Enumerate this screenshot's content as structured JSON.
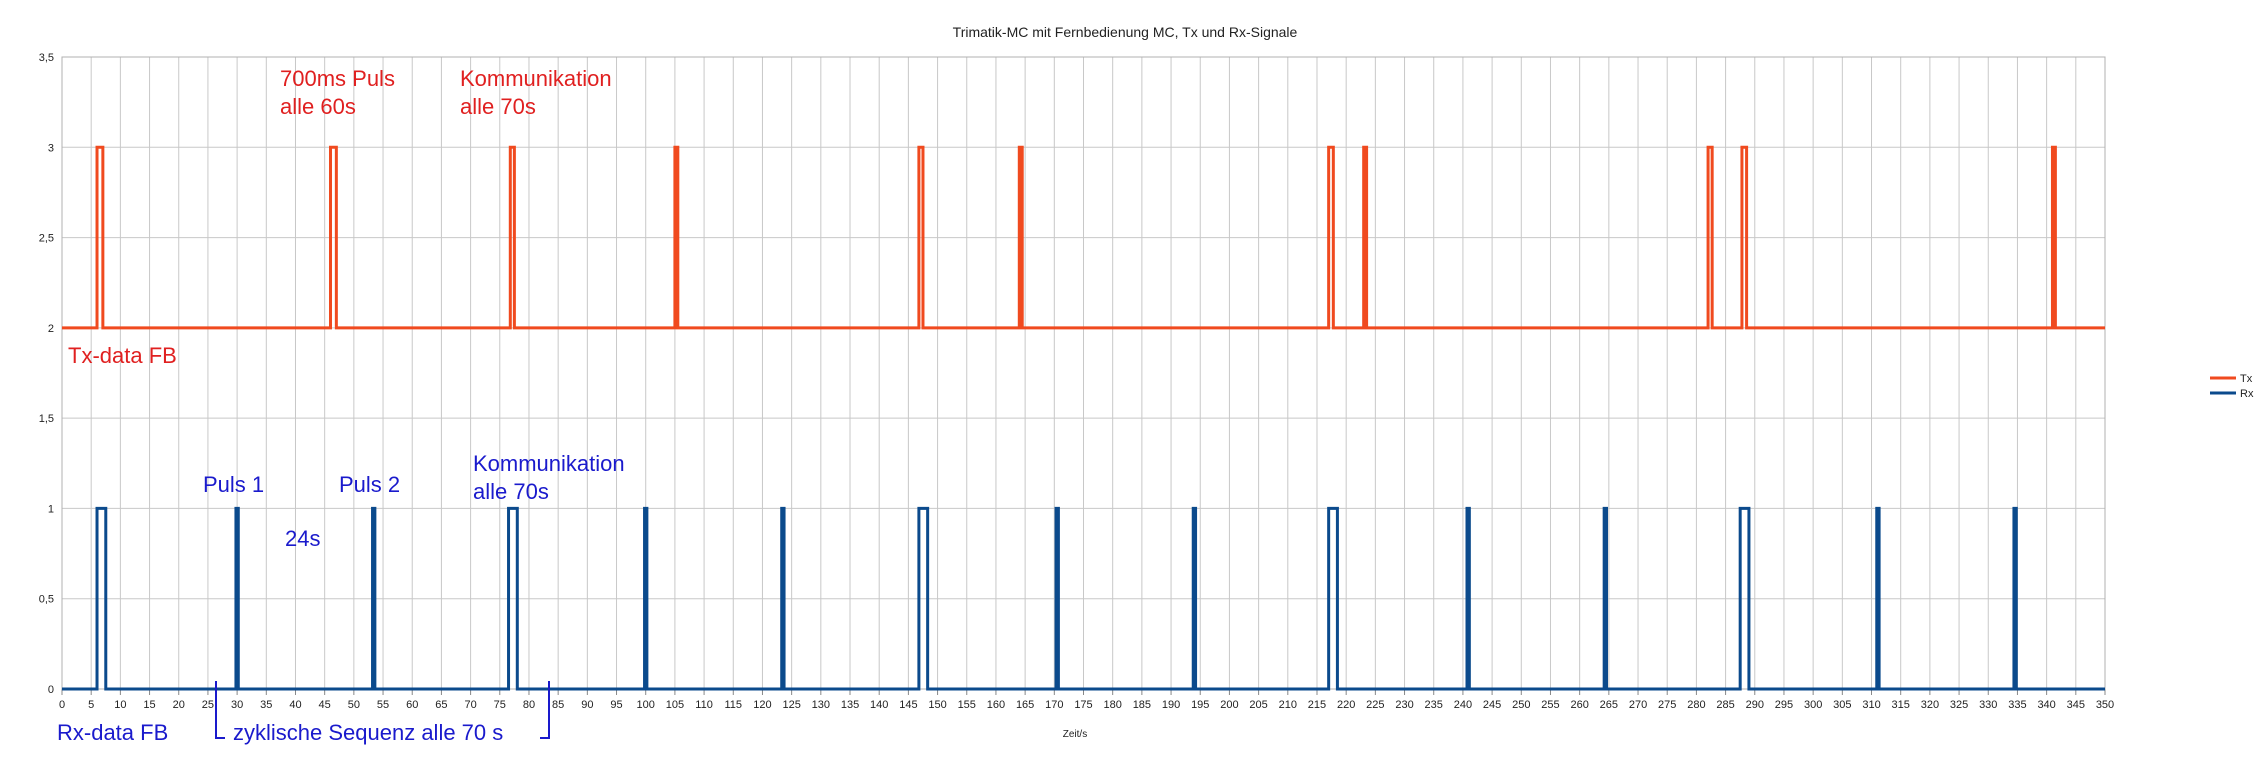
{
  "chart_data": {
    "type": "line",
    "title": "Trimatik-MC mit Fernbedienung MC, Tx und Rx-Signale",
    "xlabel": "Zeit/s",
    "ylabel": "",
    "xlim": [
      0,
      350
    ],
    "ylim": [
      0,
      3.5
    ],
    "x_step": 5,
    "y_ticks": [
      "0",
      "0,5",
      "1",
      "1,5",
      "2",
      "2,5",
      "3",
      "3,5"
    ],
    "grid": true,
    "legend_position": "right",
    "series": [
      {
        "name": "Tx",
        "color": "#f04a1f",
        "baseline": 2,
        "high": 3,
        "pulses": [
          [
            6,
            7
          ],
          [
            46,
            47
          ],
          [
            76.8,
            77.5
          ],
          [
            105,
            105.5
          ],
          [
            146.8,
            147.5
          ],
          [
            164,
            164.5
          ],
          [
            217,
            217.8
          ],
          [
            223,
            223.5
          ],
          [
            282,
            282.7
          ],
          [
            287.8,
            288.6
          ],
          [
            341,
            341.5
          ]
        ]
      },
      {
        "name": "Rx",
        "color": "#0b4a8c",
        "baseline": 0,
        "high": 1,
        "pulses": [
          [
            6,
            7.5
          ],
          [
            29.8,
            30.2
          ],
          [
            53.2,
            53.6
          ],
          [
            76.5,
            78
          ],
          [
            99.8,
            100.2
          ],
          [
            123.3,
            123.7
          ],
          [
            146.8,
            148.3
          ],
          [
            170.3,
            170.7
          ],
          [
            193.8,
            194.2
          ],
          [
            217,
            218.5
          ],
          [
            240.7,
            241.1
          ],
          [
            264.2,
            264.6
          ],
          [
            287.5,
            289
          ],
          [
            310.9,
            311.3
          ],
          [
            334.4,
            334.8
          ]
        ]
      }
    ],
    "annotations": {
      "tx_label": "Tx-data FB",
      "tx_pulse_line1": "700ms Puls",
      "tx_pulse_line2": "alle 60s",
      "tx_comm_line1": "Kommunikation",
      "tx_comm_line2": "alle 70s",
      "rx_label": "Rx-data FB",
      "rx_puls1": "Puls 1",
      "rx_puls2": "Puls 2",
      "rx_24s": "24s",
      "rx_comm_line1": "Kommunikation",
      "rx_comm_line2": "alle 70s",
      "sequence": "zyklische Sequenz alle 70 s"
    }
  }
}
